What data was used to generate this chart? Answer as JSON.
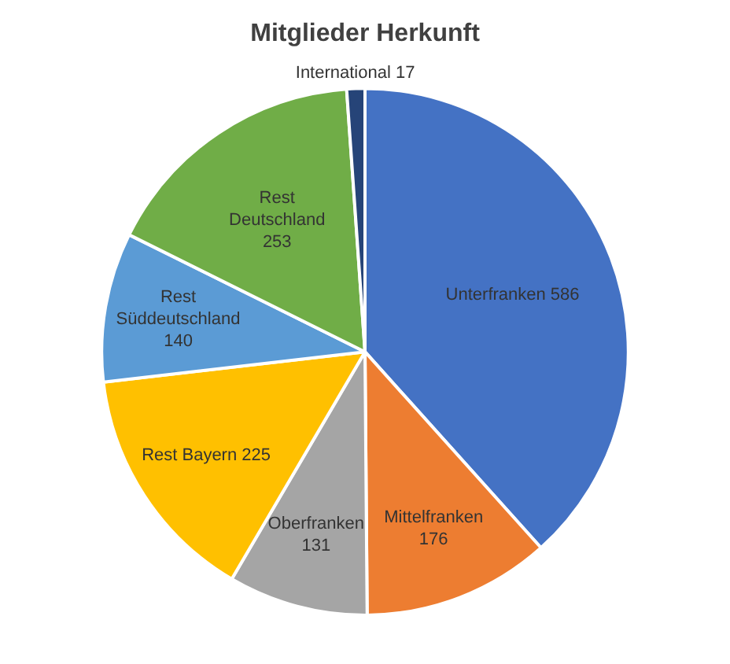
{
  "chart_data": {
    "type": "pie",
    "title": "Mitglieder Herkunft",
    "categories": [
      "Unterfranken",
      "Mittelfranken",
      "Oberfranken",
      "Rest Bayern",
      "Rest Süddeutschland",
      "Rest Deutschland",
      "International"
    ],
    "values": [
      586,
      176,
      131,
      225,
      140,
      253,
      17
    ],
    "colors": [
      "#4472c4",
      "#ed7d31",
      "#a5a5a5",
      "#ffc000",
      "#5b9bd5",
      "#70ad47",
      "#264478"
    ],
    "data_labels": true,
    "legend": false
  }
}
